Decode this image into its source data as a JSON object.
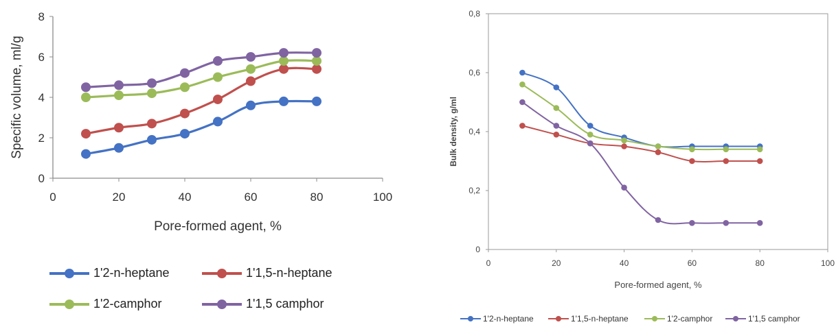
{
  "chart_data": [
    {
      "type": "line",
      "title": "",
      "xlabel": "Pore-formed agent, %",
      "ylabel": "Specific volume, ml/g",
      "xlim": [
        0,
        100
      ],
      "ylim": [
        0,
        8
      ],
      "xticks": [
        "0",
        "20",
        "40",
        "60",
        "80",
        "100"
      ],
      "yticks": [
        "0",
        "2",
        "4",
        "6",
        "8"
      ],
      "grid": false,
      "legend": "bottom",
      "x": [
        10,
        20,
        30,
        40,
        50,
        60,
        70,
        80
      ],
      "series": [
        {
          "name": "1'2-n-heptane",
          "color": "#4472C4",
          "values": [
            1.2,
            1.5,
            1.9,
            2.2,
            2.8,
            3.6,
            3.8,
            3.8
          ]
        },
        {
          "name": "1'1,5-n-heptane",
          "color": "#C0504D",
          "values": [
            2.2,
            2.5,
            2.7,
            3.2,
            3.9,
            4.8,
            5.4,
            5.4
          ]
        },
        {
          "name": "1'2-camphor",
          "color": "#9BBB59",
          "values": [
            4.0,
            4.1,
            4.2,
            4.5,
            5.0,
            5.4,
            5.8,
            5.8
          ]
        },
        {
          "name": "1'1,5 camphor",
          "color": "#8064A2",
          "values": [
            4.5,
            4.6,
            4.7,
            5.2,
            5.8,
            6.0,
            6.2,
            6.2
          ]
        }
      ]
    },
    {
      "type": "line",
      "title": "",
      "xlabel": "Pore-formed agent, %",
      "ylabel": "Bulk density, g/ml",
      "xlim": [
        0,
        100
      ],
      "ylim": [
        0,
        0.8
      ],
      "xticks": [
        "0",
        "20",
        "40",
        "60",
        "80",
        "100"
      ],
      "yticks": [
        "0",
        "0,2",
        "0,4",
        "0,6",
        "0,8"
      ],
      "grid": false,
      "legend": "bottom",
      "x": [
        10,
        20,
        30,
        40,
        50,
        60,
        70,
        80
      ],
      "series": [
        {
          "name": "1'2-n-heptane",
          "color": "#4472C4",
          "values": [
            0.6,
            0.55,
            0.42,
            0.38,
            0.35,
            0.35,
            0.35,
            0.35
          ]
        },
        {
          "name": "1'1,5-n-heptane",
          "color": "#C0504D",
          "values": [
            0.42,
            0.39,
            0.36,
            0.35,
            0.33,
            0.3,
            0.3,
            0.3
          ]
        },
        {
          "name": "1'2-camphor",
          "color": "#9BBB59",
          "values": [
            0.56,
            0.48,
            0.39,
            0.37,
            0.35,
            0.34,
            0.34,
            0.34
          ]
        },
        {
          "name": "1'1,5 camphor",
          "color": "#8064A2",
          "values": [
            0.5,
            0.42,
            0.36,
            0.21,
            0.1,
            0.09,
            0.09,
            0.09
          ]
        }
      ]
    }
  ]
}
